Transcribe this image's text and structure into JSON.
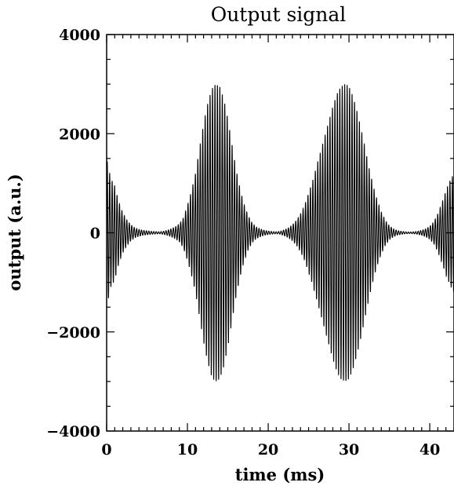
{
  "chart_data": {
    "type": "line",
    "title": "Output signal",
    "xlabel": "time (ms)",
    "ylabel": "output (a.u.)",
    "xlim": [
      0,
      43
    ],
    "ylim": [
      -4000,
      4000
    ],
    "x_ticks": [
      0,
      10,
      20,
      30,
      40
    ],
    "y_ticks": [
      -4000,
      -2000,
      0,
      2000,
      4000
    ],
    "x_tick_labels": [
      "0",
      "10",
      "20",
      "30",
      "40"
    ],
    "y_tick_labels": [
      "−4000",
      "−2000",
      "0",
      "2000",
      "4000"
    ],
    "grid": false,
    "legend": "none",
    "line_color": "#000000",
    "series": [
      {
        "x": [
          0,
          0.5,
          1.0,
          1.5,
          2.0,
          2.5,
          3.0,
          3.5,
          4.0,
          4.5,
          5.0,
          5.5,
          6.0,
          6.5,
          7.0,
          7.5,
          8.0,
          8.5,
          9.0,
          9.5,
          10.0,
          10.5,
          11.0,
          11.5,
          12.0,
          12.5,
          13.0,
          13.5,
          14.0,
          14.5,
          15.0,
          15.5,
          16.0,
          16.5,
          17.0,
          17.5,
          18.0,
          18.5,
          19.0,
          19.5,
          20.0,
          20.5,
          21.0,
          21.5,
          22.0,
          22.5,
          23.0,
          23.5,
          24.0,
          24.5,
          25.0,
          25.5,
          26.0,
          26.5,
          27.0,
          27.5,
          28.0,
          28.5,
          29.0,
          29.5,
          30.0,
          30.5,
          31.0,
          31.5,
          32.0,
          32.5,
          33.0,
          33.5,
          34.0,
          34.5,
          35.0,
          35.5,
          36.0,
          36.5,
          37.0,
          37.5,
          38.0,
          38.5,
          39.0,
          39.5,
          40.0,
          40.5,
          41.0,
          41.5,
          42.0,
          42.5,
          43.0
        ],
        "y": [
          1500,
          1100,
          950,
          620,
          400,
          260,
          160,
          100,
          70,
          50,
          40,
          30,
          25,
          20,
          30,
          50,
          80,
          120,
          180,
          300,
          550,
          850,
          1200,
          1700,
          2200,
          2600,
          2900,
          3000,
          2950,
          2700,
          2300,
          1800,
          1300,
          900,
          580,
          350,
          200,
          120,
          80,
          50,
          35,
          25,
          20,
          30,
          60,
          100,
          160,
          250,
          380,
          550,
          800,
          1050,
          1350,
          1650,
          1950,
          2250,
          2550,
          2800,
          2950,
          3000,
          2950,
          2750,
          2450,
          2100,
          1700,
          1300,
          950,
          650,
          420,
          250,
          140,
          80,
          45,
          30,
          20,
          15,
          20,
          30,
          50,
          80,
          130,
          220,
          380,
          600,
          850,
          1050,
          1200
        ]
      }
    ]
  }
}
